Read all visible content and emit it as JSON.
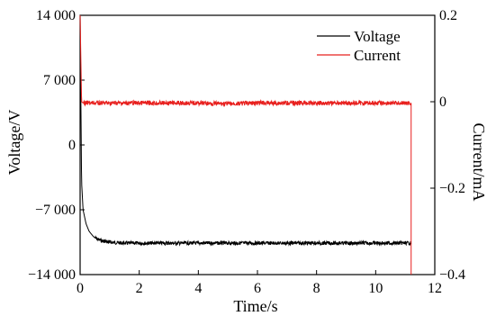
{
  "chart_data": {
    "type": "line",
    "xlabel": "Time/s",
    "ylabel_left": "Voltage/V",
    "ylabel_right": "Current/mA",
    "xlim": [
      0,
      12
    ],
    "ylim_left": [
      -14000,
      14000
    ],
    "ylim_right": [
      -0.4,
      0.2
    ],
    "x_ticks": [
      0,
      2,
      4,
      6,
      8,
      10,
      12
    ],
    "x_tick_labels": [
      "0",
      "2",
      "4",
      "6",
      "8",
      "10",
      "12"
    ],
    "y_left_ticks": [
      14000,
      7000,
      0,
      -7000,
      -14000
    ],
    "y_left_tick_labels": [
      "14 000",
      "7 000",
      "0",
      "−7 000",
      "−14 000"
    ],
    "y_right_ticks": [
      0.2,
      0,
      -0.2,
      -0.4
    ],
    "y_right_tick_labels": [
      "0.2",
      "0",
      "−0.2",
      "−0.4"
    ],
    "grid": false,
    "legend_position": "top-right",
    "series": [
      {
        "name": "Voltage",
        "axis": "left",
        "color": "#000000",
        "x": [
          0,
          0.05,
          0.1,
          0.2,
          0.3,
          0.45,
          0.6,
          0.8,
          1.0,
          1.2,
          1.5,
          2.0,
          3.0,
          4.0,
          5.0,
          6.0,
          7.0,
          8.0,
          9.0,
          10.0,
          11.0,
          11.2
        ],
        "y": [
          14000,
          -4000,
          -7000,
          -8500,
          -9300,
          -9900,
          -10200,
          -10400,
          -10500,
          -10550,
          -10600,
          -10600,
          -10600,
          -10600,
          -10600,
          -10600,
          -10600,
          -10600,
          -10600,
          -10600,
          -10600,
          -10600
        ]
      },
      {
        "name": "Current",
        "axis": "right",
        "color": "#e8201e",
        "x": [
          0,
          0.05,
          0.1,
          1,
          2,
          3,
          4,
          5,
          6,
          7,
          8,
          9,
          10,
          11,
          11.2,
          11.2
        ],
        "y": [
          0.2,
          0.0,
          -0.003,
          -0.003,
          -0.003,
          -0.003,
          -0.003,
          -0.005,
          -0.003,
          -0.003,
          -0.003,
          -0.003,
          -0.003,
          -0.003,
          -0.003,
          -0.4
        ]
      }
    ]
  }
}
